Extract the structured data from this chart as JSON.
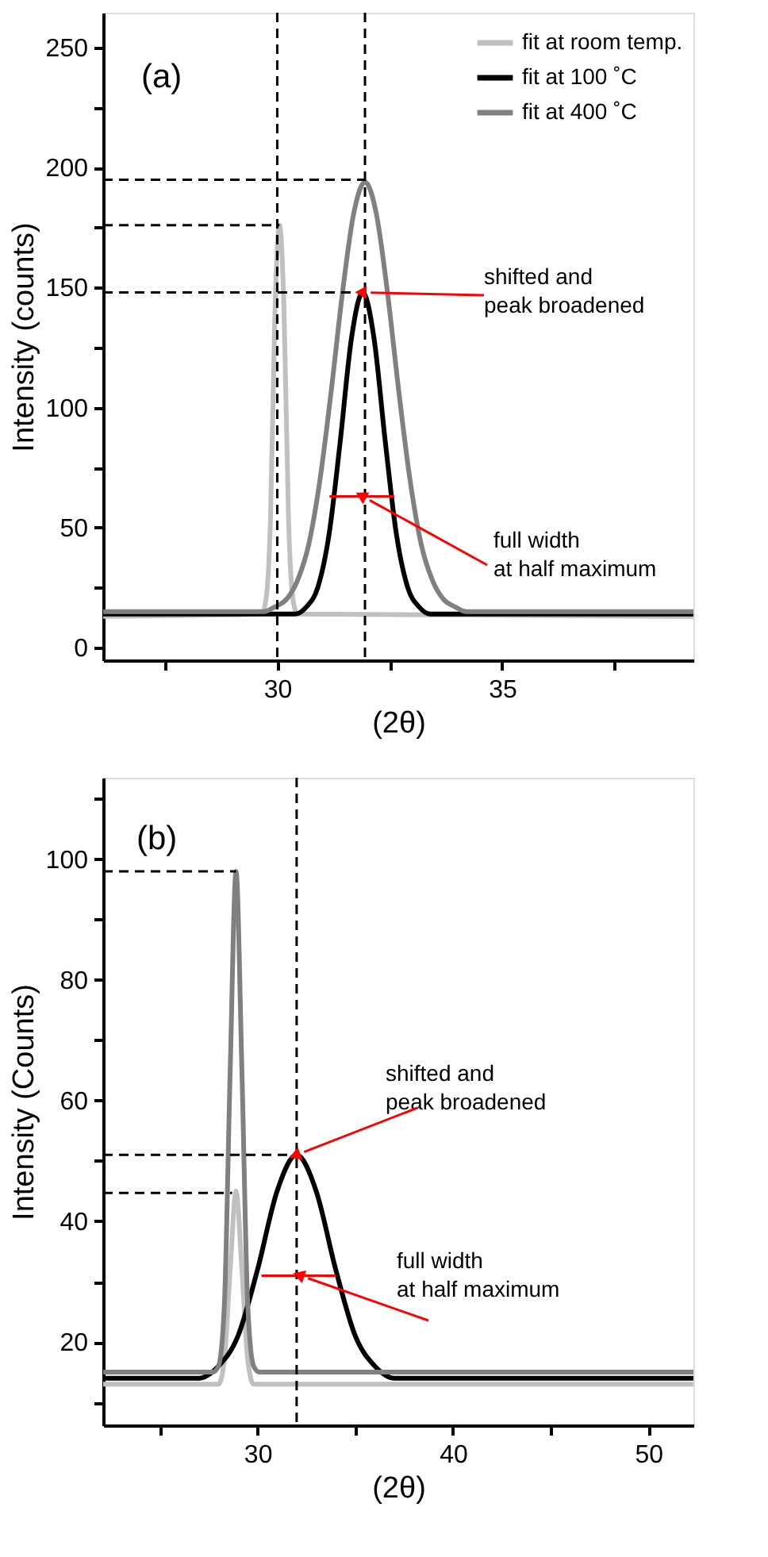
{
  "chart_data": [
    {
      "type": "line",
      "xlabel": "(2θ)",
      "ylabel": "Intensity (counts)",
      "xlim": [
        26.13,
        39.25
      ],
      "ylim": [
        -5.3,
        264.6
      ],
      "xticks": [
        {
          "value": 27.5,
          "label": null
        },
        30,
        {
          "value": 32.5,
          "label": null
        },
        35,
        {
          "value": 37.5,
          "label": null
        }
      ],
      "yticks": [
        0,
        {
          "value": 25,
          "label": null
        },
        50,
        {
          "value": 75,
          "label": null
        },
        100,
        {
          "value": 125,
          "label": null
        },
        150,
        {
          "value": 175,
          "label": null
        },
        200,
        {
          "value": 225,
          "label": null
        },
        250
      ],
      "grid": false,
      "legend": "top right",
      "series": [
        {
          "name": "fit at room temp.",
          "color": "#c0c0c0",
          "x": [
            26.13,
            29.65,
            29.75,
            29.85,
            29.95,
            30.05,
            30.15,
            30.25,
            30.35,
            30.45,
            39.25
          ],
          "values": [
            13,
            14,
            20,
            54,
            141,
            176,
            141,
            54,
            20,
            14,
            13
          ]
        },
        {
          "name": "fit at 100 ˚C",
          "color": "#000000",
          "x": [
            26.13,
            30.4,
            30.65,
            30.9,
            31.15,
            31.4,
            31.65,
            31.9,
            32.15,
            32.4,
            32.65,
            32.9,
            33.15,
            33.4,
            39.25
          ],
          "values": [
            14,
            14,
            17,
            25,
            47,
            86,
            129,
            148,
            129,
            86,
            47,
            25,
            17,
            14,
            14
          ]
        },
        {
          "name": "fit at 400 ˚C",
          "color": "#808080",
          "x": [
            26.13,
            29.7,
            29.95,
            30.2,
            30.45,
            30.7,
            30.95,
            31.2,
            31.45,
            31.7,
            31.95,
            32.2,
            32.45,
            32.7,
            32.95,
            33.2,
            33.45,
            33.7,
            33.95,
            34.2,
            39.25
          ],
          "values": [
            15,
            15,
            17,
            20,
            28,
            43,
            70,
            107,
            148,
            181,
            194,
            181,
            148,
            107,
            70,
            43,
            28,
            20,
            17,
            15,
            15
          ]
        },
        {
          "type": "line",
          "line_style": "dashed",
          "color": "#000000",
          "x": [
            26.13,
            31.95
          ],
          "values": [
            195,
            195
          ]
        },
        {
          "type": "line",
          "line_style": "dashed",
          "color": "#000000",
          "x": [
            26.13,
            30.05
          ],
          "values": [
            176,
            176
          ]
        },
        {
          "type": "line",
          "line_style": "dashed",
          "color": "#000000",
          "x": [
            26.13,
            31.9
          ],
          "values": [
            148,
            148
          ]
        },
        {
          "type": "line",
          "line_style": "solid",
          "color": "#ff0000",
          "x": [
            31.16,
            32.6
          ],
          "values": [
            63,
            63
          ]
        }
      ],
      "ref_lines": [
        {
          "axis": "x",
          "value": 30,
          "color": "#000000",
          "line_style": "dashed"
        },
        {
          "axis": "x",
          "value": 31.95,
          "color": "#000000",
          "line_style": "dashed"
        }
      ],
      "annotations": [
        "(a)",
        {
          "text": "shifted and\npeak broadened",
          "x": 31.9,
          "y": 148
        },
        {
          "text": "full width\nat half maximum",
          "x": 31.9,
          "y": 63
        }
      ]
    },
    {
      "type": "line",
      "xlabel": "(2θ)",
      "ylabel": "Intensity (Counts)",
      "xlim": [
        22.1,
        52.3
      ],
      "ylim": [
        6.2,
        113.5
      ],
      "xticks": [
        {
          "value": 25,
          "label": null
        },
        30,
        {
          "value": 35,
          "label": null
        },
        40,
        {
          "value": 45,
          "label": null
        },
        50
      ],
      "yticks": [
        {
          "value": 10,
          "label": null
        },
        20,
        {
          "value": 30,
          "label": null
        },
        40,
        {
          "value": 50,
          "label": null
        },
        60,
        {
          "value": 70,
          "label": null
        },
        80,
        {
          "value": 90,
          "label": null
        },
        100,
        {
          "value": 110,
          "label": null
        }
      ],
      "grid": false,
      "legend": "top right",
      "series": [
        {
          "name": "fit at room temp.",
          "color": "#c0c0c0",
          "x": [
            22.1,
            28.0,
            28.3,
            28.6,
            28.9,
            29.2,
            29.5,
            29.8,
            52.3
          ],
          "values": [
            13,
            13,
            17,
            32,
            45,
            32,
            17,
            13,
            13
          ]
        },
        {
          "name": "fit at 100 ˚C",
          "color": "#000000",
          "x": [
            22.1,
            27,
            28,
            29,
            30,
            31,
            32,
            33,
            34,
            35,
            36,
            37,
            52.3
          ],
          "values": [
            14,
            14,
            16,
            21,
            32,
            45,
            51,
            45,
            32,
            21,
            16,
            14,
            14
          ]
        },
        {
          "name": "fit at 400 ˚C",
          "color": "#808080",
          "x": [
            22.1,
            27.7,
            28.0,
            28.3,
            28.6,
            28.9,
            29.2,
            29.5,
            29.8,
            30.1,
            52.3
          ],
          "values": [
            15,
            15,
            16,
            26,
            65,
            98,
            65,
            26,
            16,
            15,
            15
          ]
        },
        {
          "type": "line",
          "line_style": "dashed",
          "color": "#000000",
          "x": [
            22.1,
            28.9
          ],
          "values": [
            98,
            98
          ]
        },
        {
          "type": "line",
          "line_style": "dashed",
          "color": "#000000",
          "x": [
            22.1,
            32
          ],
          "values": [
            51,
            51
          ]
        },
        {
          "type": "line",
          "line_style": "dashed",
          "color": "#000000",
          "x": [
            22.1,
            28.7
          ],
          "values": [
            44.7,
            44.7
          ]
        },
        {
          "type": "line",
          "line_style": "solid",
          "color": "#ff0000",
          "x": [
            30.2,
            34.0
          ],
          "values": [
            31,
            31
          ]
        }
      ],
      "ref_lines": [
        {
          "axis": "x",
          "value": 32,
          "color": "#000000",
          "line_style": "dashed"
        }
      ],
      "annotations": [
        "(b)",
        {
          "text": "shifted  and\npeak broadened",
          "x": 32,
          "y": 51
        },
        {
          "text": "full width\nat half maximum",
          "x": 32.2,
          "y": 31
        }
      ]
    }
  ]
}
